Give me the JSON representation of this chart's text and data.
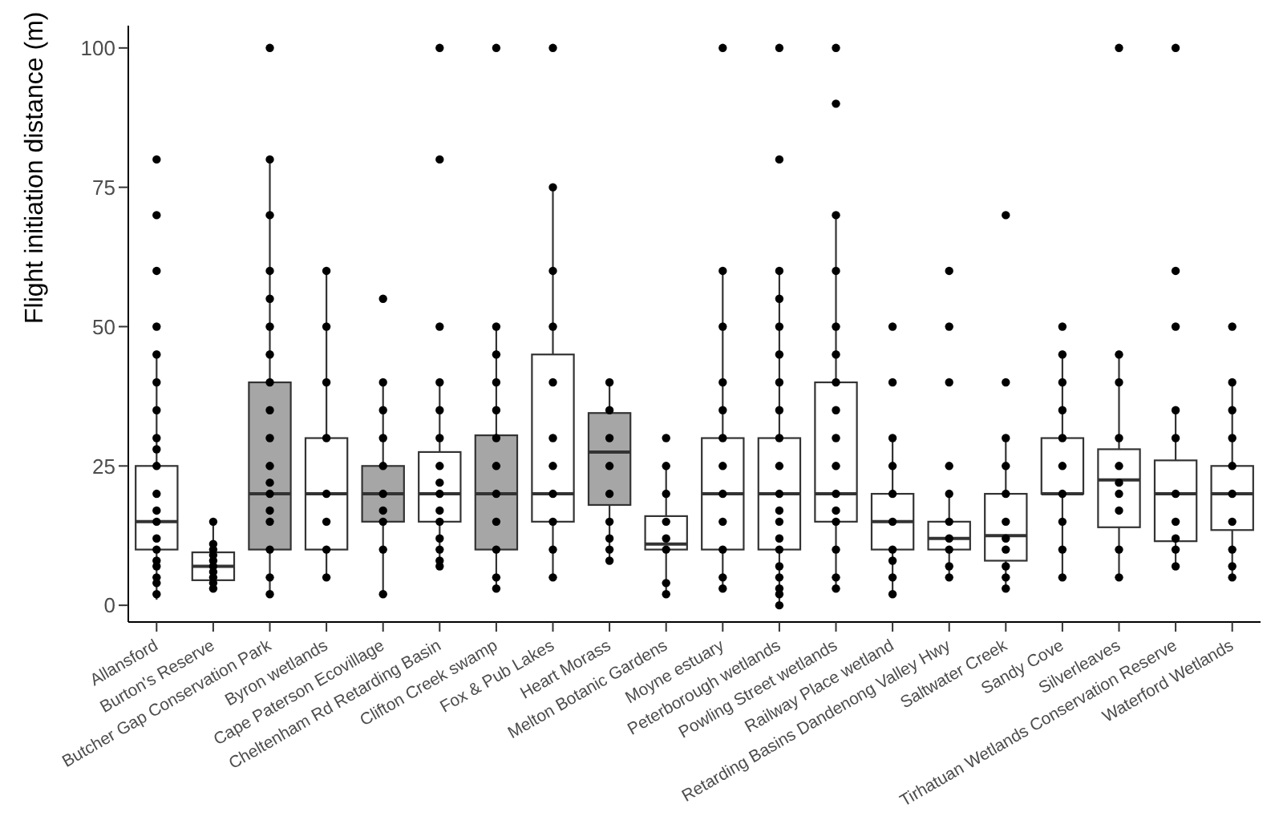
{
  "chart_data": {
    "type": "box",
    "ylabel": "Flight initiation distance (m)",
    "categories": [
      "Allansford",
      "Burton's Reserve",
      "Butcher Gap Conservation Park",
      "Byron wetlands",
      "Cape Paterson Ecovillage",
      "Cheltenham Rd Retarding Basin",
      "Clifton Creek swamp",
      "Fox & Pub Lakes",
      "Heart Morass",
      "Melton Botanic Gardens",
      "Moyne estuary",
      "Peterborough wetlands",
      "Powling Street wetlands",
      "Railway Place wetland",
      "Retarding Basins Dandenong Valley Hwy",
      "Saltwater Creek",
      "Sandy Cove",
      "Silverleaves",
      "Tirhatuan Wetlands Conservation Reserve",
      "Waterford Wetlands"
    ],
    "colors": [
      "#ffffff",
      "#ffffff",
      "#a6a6a6",
      "#ffffff",
      "#a6a6a6",
      "#ffffff",
      "#a6a6a6",
      "#ffffff",
      "#a6a6a6",
      "#ffffff",
      "#ffffff",
      "#ffffff",
      "#ffffff",
      "#ffffff",
      "#ffffff",
      "#ffffff",
      "#ffffff",
      "#ffffff",
      "#ffffff",
      "#ffffff"
    ],
    "boxes": [
      {
        "low": 1,
        "q1": 10,
        "median": 15,
        "q3": 25,
        "high": 45,
        "outliers": [
          50,
          60,
          70,
          80
        ]
      },
      {
        "low": 3,
        "q1": 4.5,
        "median": 7,
        "q3": 9.5,
        "high": 15
      },
      {
        "low": 2,
        "q1": 10,
        "median": 20,
        "q3": 40,
        "high": 80,
        "outliers": [
          100
        ]
      },
      {
        "low": 5,
        "q1": 10,
        "median": 20,
        "q3": 30,
        "high": 60
      },
      {
        "low": 2,
        "q1": 15,
        "median": 20,
        "q3": 25,
        "high": 40,
        "outliers": [
          55
        ]
      },
      {
        "low": 7,
        "q1": 15,
        "median": 20,
        "q3": 27.5,
        "high": 40,
        "outliers": [
          50,
          80,
          100
        ]
      },
      {
        "low": 3,
        "q1": 10,
        "median": 20,
        "q3": 30.5,
        "high": 50,
        "outliers": [
          100
        ]
      },
      {
        "low": 5,
        "q1": 15,
        "median": 20,
        "q3": 45,
        "high": 75,
        "outliers": [
          100
        ]
      },
      {
        "low": 8,
        "q1": 18,
        "median": 27.5,
        "q3": 34.5,
        "high": 40
      },
      {
        "low": 2,
        "q1": 10,
        "median": 11,
        "q3": 16,
        "high": 25,
        "outliers": [
          30
        ]
      },
      {
        "low": 3,
        "q1": 10,
        "median": 20,
        "q3": 30,
        "high": 60,
        "outliers": [
          100
        ]
      },
      {
        "low": 0,
        "q1": 10,
        "median": 20,
        "q3": 30,
        "high": 60,
        "outliers": [
          80,
          100
        ]
      },
      {
        "low": 3,
        "q1": 15,
        "median": 20,
        "q3": 40,
        "high": 70,
        "outliers": [
          90,
          100
        ]
      },
      {
        "low": 2,
        "q1": 10,
        "median": 15,
        "q3": 20,
        "high": 30,
        "outliers": [
          40,
          50
        ]
      },
      {
        "low": 5,
        "q1": 10,
        "median": 12,
        "q3": 15,
        "high": 20,
        "outliers": [
          25,
          40,
          50,
          60
        ]
      },
      {
        "low": 3,
        "q1": 8,
        "median": 12.5,
        "q3": 20,
        "high": 30,
        "outliers": [
          40,
          70
        ]
      },
      {
        "low": 5,
        "q1": 20,
        "median": 20,
        "q3": 30,
        "high": 45,
        "outliers": [
          50
        ]
      },
      {
        "low": 5,
        "q1": 14,
        "median": 22.5,
        "q3": 28,
        "high": 45,
        "outliers": [
          100
        ]
      },
      {
        "low": 7,
        "q1": 11.5,
        "median": 20,
        "q3": 26,
        "high": 35,
        "outliers": [
          50,
          60,
          100
        ]
      },
      {
        "low": 5,
        "q1": 13.5,
        "median": 20,
        "q3": 25,
        "high": 40,
        "outliers": [
          50
        ]
      }
    ],
    "series": [
      {
        "type": "scatter",
        "color": "#000000",
        "x": [
          "Allansford",
          "Allansford",
          "Allansford",
          "Allansford",
          "Allansford",
          "Allansford",
          "Allansford",
          "Allansford",
          "Allansford",
          "Allansford",
          "Allansford",
          "Allansford",
          "Allansford",
          "Allansford",
          "Allansford",
          "Allansford",
          "Burton's Reserve",
          "Burton's Reserve",
          "Burton's Reserve",
          "Burton's Reserve",
          "Burton's Reserve",
          "Burton's Reserve",
          "Burton's Reserve",
          "Burton's Reserve",
          "Burton's Reserve",
          "Burton's Reserve",
          "Butcher Gap Conservation Park",
          "Butcher Gap Conservation Park",
          "Butcher Gap Conservation Park",
          "Butcher Gap Conservation Park",
          "Butcher Gap Conservation Park",
          "Butcher Gap Conservation Park",
          "Butcher Gap Conservation Park",
          "Butcher Gap Conservation Park",
          "Butcher Gap Conservation Park",
          "Butcher Gap Conservation Park",
          "Butcher Gap Conservation Park",
          "Butcher Gap Conservation Park",
          "Butcher Gap Conservation Park",
          "Butcher Gap Conservation Park",
          "Butcher Gap Conservation Park",
          "Butcher Gap Conservation Park",
          "Butcher Gap Conservation Park",
          "Byron wetlands",
          "Byron wetlands",
          "Byron wetlands",
          "Byron wetlands",
          "Byron wetlands",
          "Byron wetlands",
          "Byron wetlands",
          "Byron wetlands",
          "Cape Paterson Ecovillage",
          "Cape Paterson Ecovillage",
          "Cape Paterson Ecovillage",
          "Cape Paterson Ecovillage",
          "Cape Paterson Ecovillage",
          "Cape Paterson Ecovillage",
          "Cape Paterson Ecovillage",
          "Cape Paterson Ecovillage",
          "Cape Paterson Ecovillage",
          "Cheltenham Rd Retarding Basin",
          "Cheltenham Rd Retarding Basin",
          "Cheltenham Rd Retarding Basin",
          "Cheltenham Rd Retarding Basin",
          "Cheltenham Rd Retarding Basin",
          "Cheltenham Rd Retarding Basin",
          "Cheltenham Rd Retarding Basin",
          "Cheltenham Rd Retarding Basin",
          "Cheltenham Rd Retarding Basin",
          "Cheltenham Rd Retarding Basin",
          "Cheltenham Rd Retarding Basin",
          "Cheltenham Rd Retarding Basin",
          "Clifton Creek swamp",
          "Clifton Creek swamp",
          "Clifton Creek swamp",
          "Clifton Creek swamp",
          "Clifton Creek swamp",
          "Clifton Creek swamp",
          "Clifton Creek swamp",
          "Clifton Creek swamp",
          "Clifton Creek swamp",
          "Clifton Creek swamp",
          "Clifton Creek swamp",
          "Fox & Pub Lakes",
          "Fox & Pub Lakes",
          "Fox & Pub Lakes",
          "Fox & Pub Lakes",
          "Fox & Pub Lakes",
          "Fox & Pub Lakes",
          "Fox & Pub Lakes",
          "Fox & Pub Lakes",
          "Fox & Pub Lakes",
          "Fox & Pub Lakes",
          "Heart Morass",
          "Heart Morass",
          "Heart Morass",
          "Heart Morass",
          "Heart Morass",
          "Heart Morass",
          "Heart Morass",
          "Heart Morass",
          "Heart Morass",
          "Melton Botanic Gardens",
          "Melton Botanic Gardens",
          "Melton Botanic Gardens",
          "Melton Botanic Gardens",
          "Melton Botanic Gardens",
          "Melton Botanic Gardens",
          "Melton Botanic Gardens",
          "Moyne estuary",
          "Moyne estuary",
          "Moyne estuary",
          "Moyne estuary",
          "Moyne estuary",
          "Moyne estuary",
          "Moyne estuary",
          "Moyne estuary",
          "Moyne estuary",
          "Moyne estuary",
          "Moyne estuary",
          "Peterborough wetlands",
          "Peterborough wetlands",
          "Peterborough wetlands",
          "Peterborough wetlands",
          "Peterborough wetlands",
          "Peterborough wetlands",
          "Peterborough wetlands",
          "Peterborough wetlands",
          "Peterborough wetlands",
          "Peterborough wetlands",
          "Peterborough wetlands",
          "Peterborough wetlands",
          "Peterborough wetlands",
          "Peterborough wetlands",
          "Peterborough wetlands",
          "Peterborough wetlands",
          "Peterborough wetlands",
          "Peterborough wetlands",
          "Powling Street wetlands",
          "Powling Street wetlands",
          "Powling Street wetlands",
          "Powling Street wetlands",
          "Powling Street wetlands",
          "Powling Street wetlands",
          "Powling Street wetlands",
          "Powling Street wetlands",
          "Powling Street wetlands",
          "Powling Street wetlands",
          "Powling Street wetlands",
          "Powling Street wetlands",
          "Powling Street wetlands",
          "Powling Street wetlands",
          "Railway Place wetland",
          "Railway Place wetland",
          "Railway Place wetland",
          "Railway Place wetland",
          "Railway Place wetland",
          "Railway Place wetland",
          "Railway Place wetland",
          "Railway Place wetland",
          "Retarding Basins Dandenong Valley Hwy",
          "Retarding Basins Dandenong Valley Hwy",
          "Retarding Basins Dandenong Valley Hwy",
          "Retarding Basins Dandenong Valley Hwy",
          "Retarding Basins Dandenong Valley Hwy",
          "Retarding Basins Dandenong Valley Hwy",
          "Saltwater Creek",
          "Saltwater Creek",
          "Saltwater Creek",
          "Saltwater Creek",
          "Saltwater Creek",
          "Saltwater Creek",
          "Saltwater Creek",
          "Saltwater Creek",
          "Saltwater Creek",
          "Sandy Cove",
          "Sandy Cove",
          "Sandy Cove",
          "Sandy Cove",
          "Sandy Cove",
          "Sandy Cove",
          "Sandy Cove",
          "Sandy Cove",
          "Sandy Cove",
          "Silverleaves",
          "Silverleaves",
          "Silverleaves",
          "Silverleaves",
          "Silverleaves",
          "Silverleaves",
          "Silverleaves",
          "Silverleaves",
          "Silverleaves",
          "Tirhatuan Wetlands Conservation Reserve",
          "Tirhatuan Wetlands Conservation Reserve",
          "Tirhatuan Wetlands Conservation Reserve",
          "Tirhatuan Wetlands Conservation Reserve",
          "Tirhatuan Wetlands Conservation Reserve",
          "Tirhatuan Wetlands Conservation Reserve",
          "Tirhatuan Wetlands Conservation Reserve",
          "Waterford Wetlands",
          "Waterford Wetlands",
          "Waterford Wetlands",
          "Waterford Wetlands",
          "Waterford Wetlands",
          "Waterford Wetlands",
          "Waterford Wetlands",
          "Waterford Wetlands",
          "Waterford Wetlands"
        ],
        "values": [
          2,
          4,
          5,
          7,
          8,
          10,
          12,
          15,
          17,
          20,
          25,
          28,
          30,
          35,
          40,
          45,
          3,
          4,
          5,
          6,
          7,
          8,
          9,
          10,
          11,
          15,
          2,
          5,
          10,
          15,
          17,
          20,
          22,
          25,
          30,
          35,
          40,
          45,
          50,
          55,
          60,
          70,
          80,
          5,
          10,
          15,
          20,
          30,
          40,
          50,
          60,
          2,
          10,
          15,
          17,
          20,
          25,
          30,
          35,
          40,
          7,
          8,
          10,
          12,
          15,
          17,
          20,
          22,
          25,
          30,
          35,
          40,
          3,
          5,
          10,
          15,
          20,
          25,
          30,
          35,
          40,
          45,
          50,
          5,
          10,
          15,
          20,
          25,
          30,
          40,
          50,
          60,
          75,
          8,
          10,
          12,
          15,
          20,
          25,
          30,
          35,
          40,
          2,
          4,
          10,
          12,
          15,
          20,
          25,
          3,
          5,
          10,
          15,
          20,
          25,
          30,
          35,
          40,
          50,
          60,
          0,
          2,
          3,
          5,
          7,
          10,
          12,
          15,
          17,
          20,
          25,
          30,
          35,
          40,
          45,
          50,
          55,
          60,
          3,
          5,
          10,
          15,
          17,
          20,
          25,
          30,
          35,
          40,
          45,
          50,
          60,
          70,
          2,
          5,
          8,
          10,
          15,
          20,
          25,
          30,
          5,
          7,
          10,
          12,
          15,
          20,
          3,
          5,
          7,
          10,
          12,
          15,
          20,
          25,
          30,
          5,
          10,
          15,
          20,
          25,
          30,
          35,
          40,
          45,
          5,
          10,
          17,
          20,
          22,
          25,
          30,
          40,
          45,
          7,
          10,
          12,
          15,
          20,
          30,
          35,
          5,
          7,
          10,
          15,
          20,
          25,
          30,
          35,
          40
        ]
      }
    ],
    "marker": "circle",
    "ylim": [
      -3,
      104
    ],
    "yticks": [
      0,
      25,
      50,
      75,
      100
    ]
  }
}
